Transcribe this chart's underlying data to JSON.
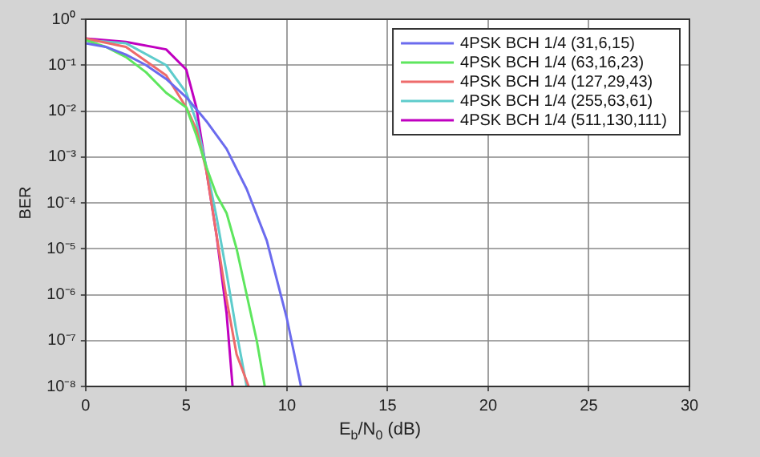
{
  "chart_data": {
    "type": "line",
    "xlabel": "E$_{b}$/N$_{0}$ (dB)",
    "ylabel": "BER",
    "log": "y",
    "grid": true,
    "legend": "top right",
    "marker": "none",
    "line_style": "solid",
    "xlim": [
      0,
      30
    ],
    "xticks": [
      0,
      5,
      10,
      15,
      20,
      25,
      30
    ],
    "ylim": [
      1e-08,
      1
    ],
    "yticks": [
      {
        "value": 1e-08,
        "label": "10⁻⁸"
      },
      {
        "value": 1e-07,
        "label": "10⁻⁷"
      },
      {
        "value": 1e-06,
        "label": "10⁻⁶"
      },
      {
        "value": 1e-05,
        "label": "10⁻⁵"
      },
      {
        "value": 0.0001,
        "label": "10⁻⁴"
      },
      {
        "value": 0.001,
        "label": "10⁻³"
      },
      {
        "value": 0.01,
        "label": "10⁻²"
      },
      {
        "value": 0.1,
        "label": "10⁻¹"
      },
      {
        "value": 1,
        "label": "10⁰"
      }
    ],
    "series": [
      {
        "name": "4PSK BCH 1/4 (31,6,15)",
        "color": "#6b6bee",
        "x": [
          0,
          1,
          2,
          3,
          4,
          5,
          6,
          7,
          8,
          9,
          10,
          10.7
        ],
        "values": [
          0.3,
          0.25,
          0.17,
          0.1,
          0.05,
          0.02,
          0.006,
          0.0015,
          0.0002,
          1.5e-05,
          3e-07,
          1e-08
        ]
      },
      {
        "name": "4PSK BCH 1/4 (63,16,23)",
        "color": "#5ee65e",
        "x": [
          0,
          1,
          2,
          3,
          4,
          5,
          5.5,
          6,
          6.5,
          7,
          7.5,
          8,
          8.5,
          8.9
        ],
        "values": [
          0.35,
          0.25,
          0.15,
          0.07,
          0.025,
          0.012,
          0.003,
          0.0006,
          0.00015,
          6e-05,
          1e-05,
          1e-06,
          1e-07,
          1e-08
        ]
      },
      {
        "name": "4PSK BCH 1/4 (127,29,43)",
        "color": "#ee6b6b",
        "x": [
          0,
          2,
          4,
          5,
          5.5,
          6,
          6.5,
          7,
          7.5,
          8.1
        ],
        "values": [
          0.38,
          0.25,
          0.06,
          0.012,
          0.004,
          0.0005,
          2e-05,
          8e-07,
          5e-08,
          1e-08
        ]
      },
      {
        "name": "4PSK BCH 1/4 (255,63,61)",
        "color": "#5ecccc",
        "x": [
          0,
          2,
          4,
          5,
          5.5,
          6,
          6.5,
          7,
          7.5,
          8
        ],
        "values": [
          0.35,
          0.3,
          0.1,
          0.025,
          0.006,
          0.0006,
          5e-05,
          3e-06,
          1.5e-07,
          1e-08
        ]
      },
      {
        "name": "4PSK BCH 1/4 (511,130,111)",
        "color": "#c000c0",
        "x": [
          0,
          2,
          4,
          5,
          5.5,
          6,
          6.5,
          7,
          7.3
        ],
        "values": [
          0.38,
          0.32,
          0.22,
          0.08,
          0.012,
          0.0005,
          2e-05,
          4e-07,
          1e-08
        ]
      }
    ]
  }
}
